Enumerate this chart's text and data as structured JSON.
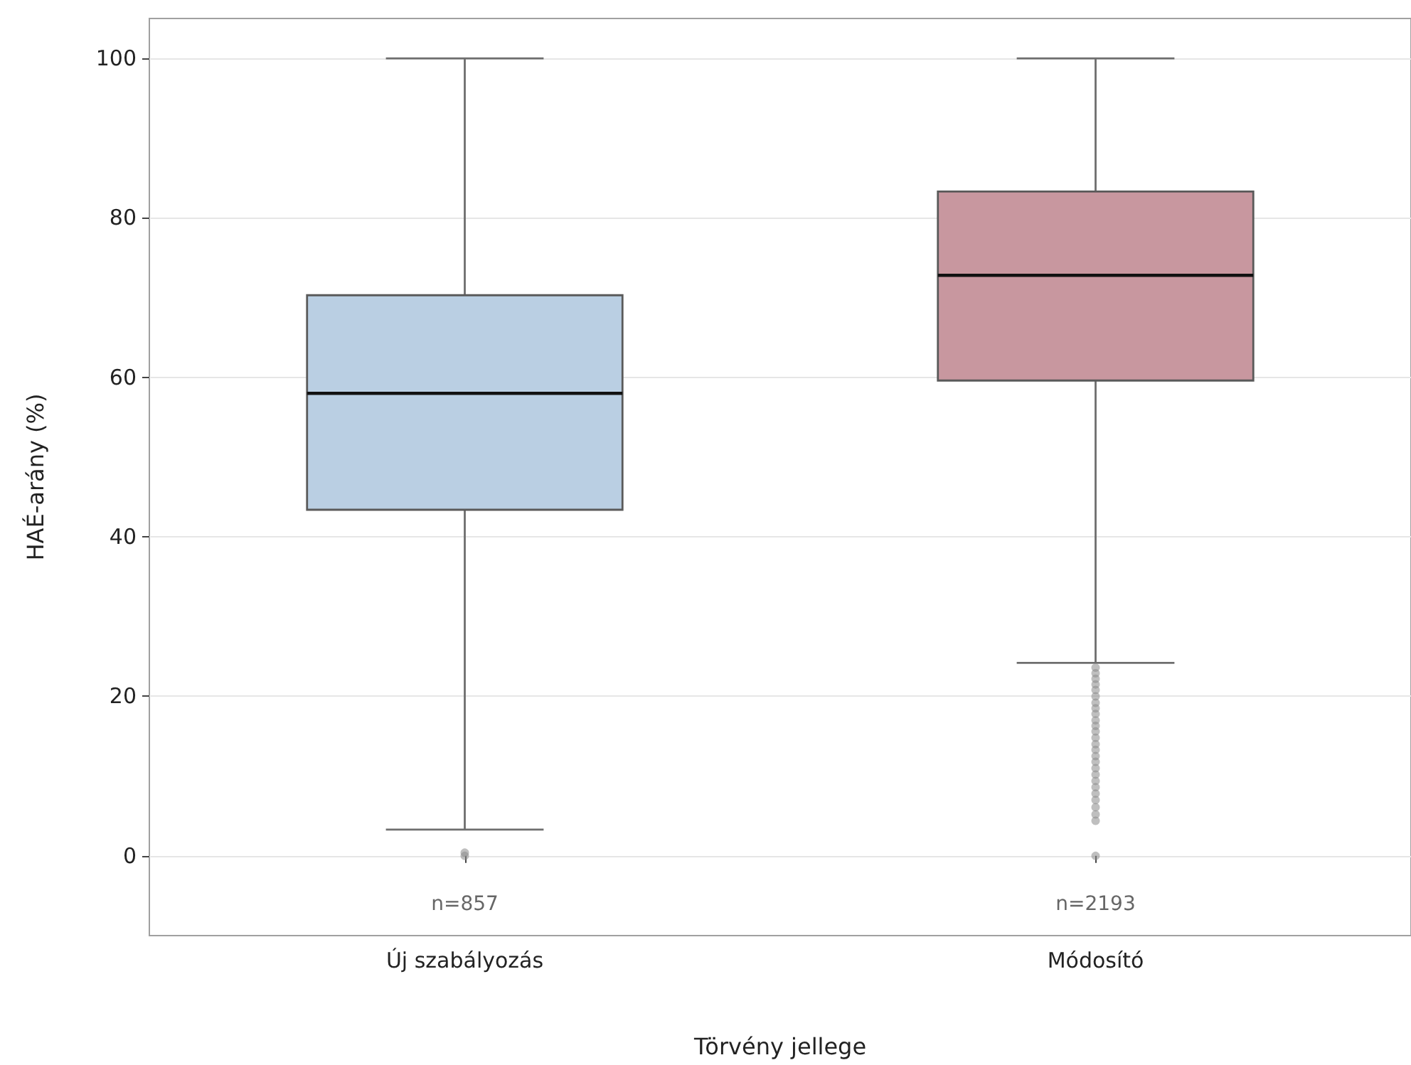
{
  "chart_data": {
    "type": "box",
    "xlabel": "Törvény jellege",
    "ylabel": "HAÉ-arány (%)",
    "categories": [
      "Új szabályozás",
      "Módosító"
    ],
    "boxes": [
      {
        "low": 3.3,
        "q1": 43.4,
        "median": 58.0,
        "q3": 70.3,
        "high": 100,
        "outliers": [
          0,
          0.4
        ]
      },
      {
        "low": 24.2,
        "q1": 59.6,
        "median": 72.8,
        "q3": 83.3,
        "high": 100,
        "outliers": [
          0,
          4.4,
          5.2,
          6.1,
          7.0,
          7.8,
          8.6,
          9.4,
          10.2,
          11.0,
          11.8,
          12.5,
          13.3,
          14.0,
          14.8,
          15.6,
          16.3,
          17.0,
          17.8,
          18.5,
          19.2,
          20.0,
          20.8,
          21.5,
          22.2,
          22.9,
          23.6
        ]
      }
    ],
    "colors": [
      "#bacfe3",
      "#c8979f"
    ],
    "ylim": [
      -10,
      105
    ],
    "yticks": [
      0,
      20,
      40,
      60,
      80,
      100
    ],
    "grid": "y",
    "annotations": [
      "n=857",
      "n=2193"
    ]
  }
}
